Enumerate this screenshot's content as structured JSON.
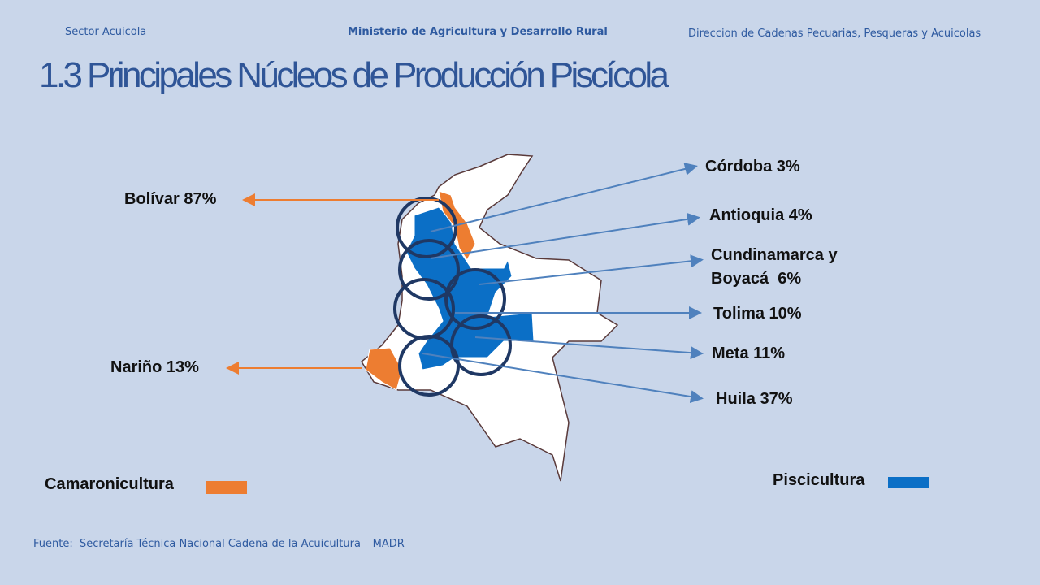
{
  "header": {
    "left": "Sector Acuicola",
    "center": "Ministerio de Agricultura y Desarrollo Rural",
    "right": "Direccion de Cadenas Pecuarias, Pesqueras y Acuicolas"
  },
  "title": "1.3 Principales Núcleos de Producción Piscícola",
  "camaronicultura": {
    "legend": "Camaronicultura",
    "color": "#ed7d31",
    "labels": [
      "Bolívar 87%",
      "Nariño 13%"
    ]
  },
  "piscicultura": {
    "legend": "Piscicultura",
    "color": "#0b6fc6",
    "labels": [
      "Córdoba 3%",
      "Antioquia 4%",
      "Cundinamarca y Boyacá  6%",
      "Tolima 10%",
      "Meta 11%",
      "Huila 37%"
    ]
  },
  "source": "Fuente:  Secretaría Técnica Nacional Cadena de la Acuicultura – MADR"
}
